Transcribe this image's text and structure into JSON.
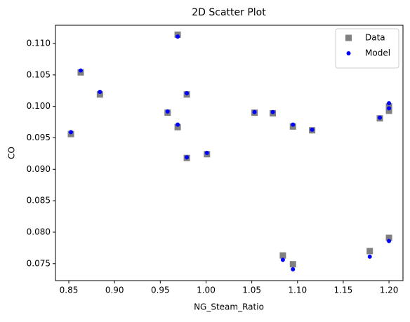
{
  "chart_data": {
    "type": "scatter",
    "title": "2D Scatter Plot",
    "x_label": "NG_Steam_Ratio",
    "y_label": "CO",
    "xlim": [
      0.8354,
      1.2153
    ],
    "ylim": [
      0.0723,
      0.1129
    ],
    "xticks": [
      0.85,
      {
        "value": 0.9,
        "label": "0.90"
      },
      0.95,
      {
        "value": 1.0,
        "label": "1.00"
      },
      1.05,
      {
        "value": 1.1,
        "label": "1.10"
      },
      1.15,
      {
        "value": 1.2,
        "label": "1.20"
      }
    ],
    "yticks": [
      0.075,
      {
        "value": 0.08,
        "label": "0.080"
      },
      0.085,
      {
        "value": 0.09,
        "label": "0.090"
      },
      0.095,
      {
        "value": 0.1,
        "label": "0.100"
      },
      0.105,
      {
        "value": 0.11,
        "label": "0.110"
      }
    ],
    "legend": "upper right",
    "series": [
      {
        "name": "Data",
        "color": "#808080",
        "marker": "square",
        "x": [
          0.8523,
          0.863,
          0.884,
          0.958,
          0.969,
          0.969,
          0.979,
          0.979,
          1.001,
          1.053,
          1.073,
          1.095,
          1.116,
          1.084,
          1.095,
          1.179,
          1.19,
          1.2,
          1.2,
          1.2
        ],
        "values": [
          0.0956,
          0.1054,
          0.1019,
          0.099,
          0.0967,
          0.1114,
          0.1019,
          0.0918,
          0.0924,
          0.099,
          0.0989,
          0.0968,
          0.0962,
          0.0763,
          0.0749,
          0.077,
          0.0981,
          0.0993,
          0.1,
          0.0791
        ]
      },
      {
        "name": "Model",
        "color": "#0000ff",
        "marker": "circle",
        "x": [
          0.8523,
          0.863,
          0.884,
          0.958,
          0.969,
          0.969,
          0.979,
          0.979,
          1.001,
          1.053,
          1.073,
          1.095,
          1.116,
          1.084,
          1.095,
          1.179,
          1.19,
          1.2,
          1.2,
          1.2
        ],
        "values": [
          0.0959,
          0.1057,
          0.1023,
          0.0992,
          0.0971,
          0.1111,
          0.1021,
          0.0919,
          0.0926,
          0.0991,
          0.0991,
          0.0971,
          0.0963,
          0.0756,
          0.0741,
          0.0761,
          0.0982,
          0.1005,
          0.0997,
          0.0786
        ]
      }
    ]
  }
}
